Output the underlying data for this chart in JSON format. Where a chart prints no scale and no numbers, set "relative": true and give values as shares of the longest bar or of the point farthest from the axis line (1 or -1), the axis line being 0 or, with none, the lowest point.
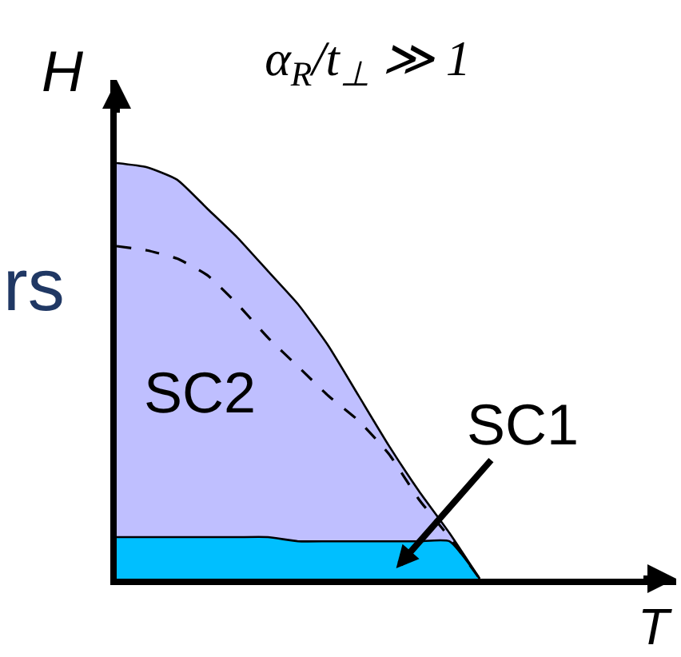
{
  "chart_data": {
    "type": "area",
    "title": "α$_{R}$/t$_{⊥}$ ≫ 1",
    "xlabel": "T",
    "ylabel": "H",
    "relative": true,
    "annotations": [
      "rs"
    ],
    "categories": [
      null,
      null,
      null,
      null,
      null,
      null,
      null,
      null,
      null,
      null,
      null,
      null,
      null,
      null,
      null,
      null,
      null,
      null,
      null
    ],
    "series": [
      {
        "name": "SC2",
        "color": "#bfbfff",
        "values": [
          1.0,
          0.99,
          0.96,
          0.89,
          0.82,
          0.74,
          0.66,
          0.56,
          0.44,
          0.32,
          0.21,
          0.11,
          0,
          null,
          null,
          null,
          null,
          null,
          null
        ]
      },
      {
        "name": "SC1",
        "color": "#00bfff",
        "values": [
          0.1,
          0.1,
          0.1,
          0.1,
          0.1,
          0.1,
          0.09,
          0.09,
          0.09,
          0.09,
          0.09,
          0.09,
          0,
          null,
          null,
          null,
          null,
          null,
          null
        ]
      },
      {
        "type": "line",
        "color": "#000000",
        "line_style": "dashed",
        "values": [
          0.8,
          0.79,
          0.77,
          0.73,
          0.66,
          0.58,
          0.51,
          0.44,
          0.38,
          0.3,
          0.19,
          0.1,
          0,
          null,
          null,
          null,
          null,
          null,
          null
        ]
      }
    ]
  }
}
